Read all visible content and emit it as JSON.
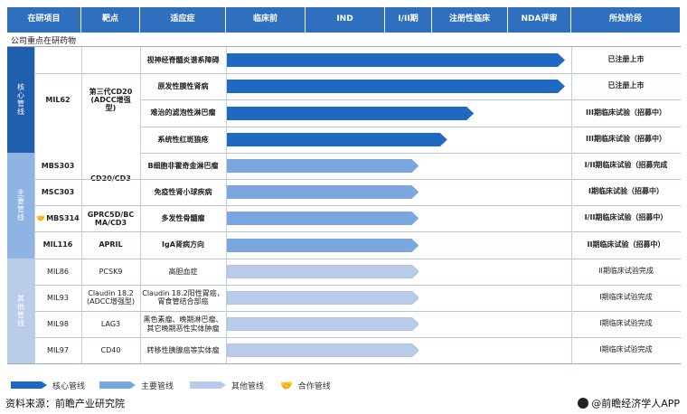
{
  "header": {
    "cols": [
      "在研项目",
      "靶点",
      "适应症",
      "临床前",
      "IND",
      "I/II期",
      "注册性临床",
      "NDA评审",
      "所处阶段"
    ]
  },
  "section_title": "公司重点在研药物",
  "categories": [
    {
      "label": "核心管线",
      "color": "#1f5fae"
    },
    {
      "label": "主要管线",
      "color": "#8fb3e3"
    },
    {
      "label": "其他管线",
      "color": "#b9cce8"
    }
  ],
  "colors": {
    "core": "#1f6ac0",
    "main": "#7aa7df",
    "other": "#b8cbe8",
    "header": "#2f6fc0"
  },
  "chart_data": {
    "type": "bar",
    "stages": [
      "临床前",
      "IND",
      "I/II期",
      "注册性临床",
      "NDA评审"
    ],
    "rows": [
      {
        "project": "MIL62",
        "target": "第三代CD20\n(ADCC增强\n型)",
        "indication": "视神经脊髓炎谱系障碍",
        "tier": "core",
        "stage_index": 4.9,
        "status": "已注册上市",
        "bold": true
      },
      {
        "project": "MIL62",
        "target": "第三代CD20\n(ADCC增强\n型)",
        "indication": "原发性膜性肾病",
        "tier": "core",
        "stage_index": 4.9,
        "status": "已注册上市",
        "bold": true
      },
      {
        "project": "MIL62",
        "target": "第三代CD20\n(ADCC增强\n型)",
        "indication": "难治的滤泡性淋巴瘤",
        "tier": "core",
        "stage_index": 3.55,
        "status": "III期临床试验（招募中）",
        "bold": true
      },
      {
        "project": "MIL62",
        "target": "第三代CD20\n(ADCC增强\n型)",
        "indication": "系统性红斑狼疮",
        "tier": "core",
        "stage_index": 3.2,
        "status": "III期临床试验（招募中）",
        "bold": true
      },
      {
        "project": "MBS303",
        "target": "CD20/CD3",
        "indication": "B细胞非霍奇金淋巴瘤",
        "tier": "main",
        "stage_index": 2.72,
        "status": "I/II期临床试验（招募完成",
        "bold": true
      },
      {
        "project": "MSC303",
        "target": "CD20/CD3",
        "indication": "免疫性肾小球疾病",
        "tier": "main",
        "stage_index": 2.72,
        "status": "I期临床试验（招募中）",
        "bold": true
      },
      {
        "project": "MBS314",
        "target": "GPRC5D/BC\nMA/CD3",
        "indication": "多发性骨髓瘤",
        "tier": "main",
        "stage_index": 2.72,
        "status": "I/II期临床试验（招募中）",
        "bold": true,
        "partner": true
      },
      {
        "project": "MIL116",
        "target": "APRIL",
        "indication": "IgA肾病方向",
        "tier": "main",
        "stage_index": 2.72,
        "status": "II期临床试验（招募中）",
        "bold": true
      },
      {
        "project": "MIL86",
        "target": "PCSK9",
        "indication": "高胆血症",
        "tier": "other",
        "stage_index": 2.72,
        "status": "II期临床试验完成",
        "bold": false
      },
      {
        "project": "MIL93",
        "target": "Claudin 18.2\n(ADCC增强型)",
        "indication": "Claudin 18.2阳性胃癌，\n胃食管结合部癌",
        "tier": "other",
        "stage_index": 2.72,
        "status": "I期临床试验完成",
        "bold": false
      },
      {
        "project": "MIL98",
        "target": "LAG3",
        "indication": "黑色素瘤、晚期淋巴瘤、\n其它晚期恶性实体肿瘤",
        "tier": "other",
        "stage_index": 2.72,
        "status": "I期临床试验完成",
        "bold": false
      },
      {
        "project": "MIL97",
        "target": "CD40",
        "indication": "转移性胰腺癌等实体瘤",
        "tier": "other",
        "stage_index": 2.72,
        "status": "I期临床试验完成",
        "bold": false
      }
    ]
  },
  "legend": [
    {
      "label": "核心管线",
      "tier": "core"
    },
    {
      "label": "主要管线",
      "tier": "main"
    },
    {
      "label": "其他管线",
      "tier": "other"
    },
    {
      "label": "合作管线",
      "tier": "partner"
    }
  ],
  "footer": {
    "source": "资料来源：前瞻产业研究院",
    "brand": "@前瞻经济学人APP"
  }
}
